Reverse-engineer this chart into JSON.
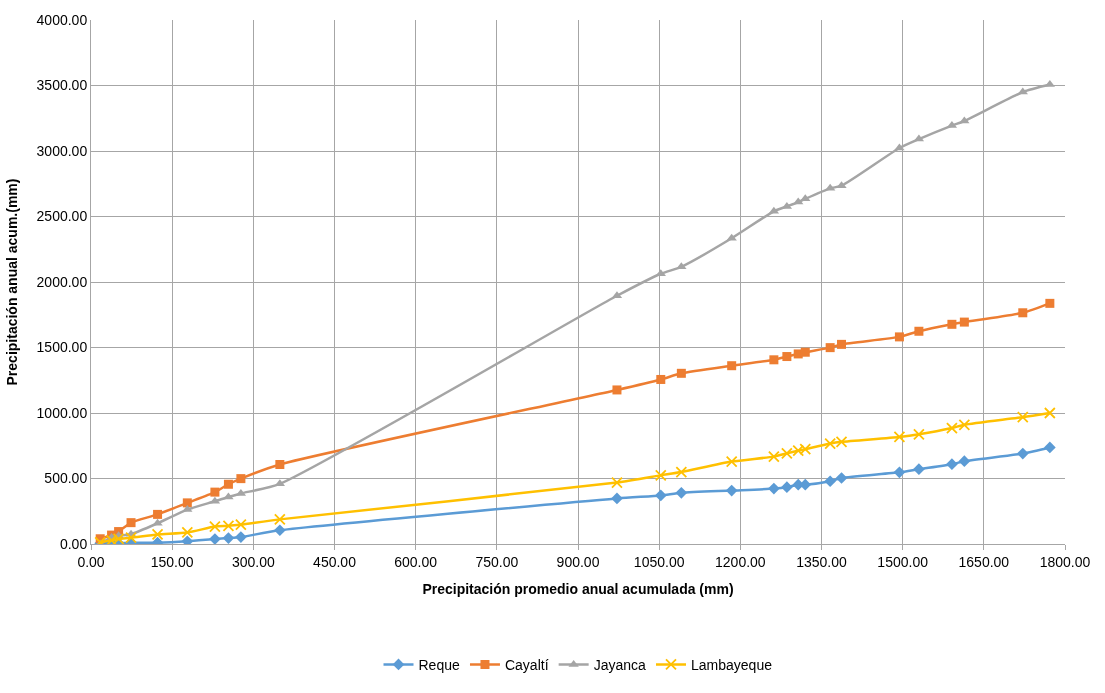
{
  "chart_data": {
    "type": "line",
    "xlabel": "Precipitación promedio anual acumulada (mm)",
    "ylabel": "Precipitación anual acum.(mm)",
    "x": [
      17,
      38,
      51,
      74,
      123,
      178,
      229,
      254,
      277,
      349,
      972,
      1053,
      1091,
      1184,
      1262,
      1286,
      1307,
      1320,
      1366,
      1387,
      1494,
      1530,
      1591,
      1614,
      1722,
      1772
    ],
    "series": [
      {
        "name": "Reque",
        "color": "#5b9bd5",
        "marker": "diamond",
        "values": [
          5,
          5,
          5,
          10,
          10,
          21,
          38,
          45,
          53,
          105,
          348,
          371,
          391,
          408,
          423,
          434,
          453,
          453,
          479,
          504,
          547,
          571,
          609,
          632,
          690,
          737
        ]
      },
      {
        "name": "Cayaltí",
        "color": "#ed7d31",
        "marker": "square",
        "values": [
          40,
          68,
          95,
          163,
          226,
          314,
          396,
          456,
          499,
          607,
          1176,
          1256,
          1303,
          1361,
          1406,
          1431,
          1451,
          1464,
          1499,
          1524,
          1581,
          1624,
          1677,
          1694,
          1765,
          1837
        ]
      },
      {
        "name": "Jayanca",
        "color": "#a5a5a5",
        "marker": "triangle",
        "values": [
          0,
          50,
          63,
          75,
          158,
          263,
          326,
          359,
          386,
          459,
          1895,
          2063,
          2116,
          2334,
          2540,
          2577,
          2610,
          2635,
          2715,
          2735,
          3023,
          3091,
          3194,
          3229,
          3450,
          3507
        ]
      },
      {
        "name": "Lambayeque",
        "color": "#ffc000",
        "marker": "cross",
        "values": [
          13,
          28,
          39,
          48,
          73,
          88,
          133,
          138,
          148,
          188,
          469,
          524,
          549,
          629,
          667,
          692,
          712,
          724,
          767,
          780,
          817,
          837,
          885,
          910,
          968,
          1000
        ]
      }
    ],
    "xlim": [
      0,
      1800
    ],
    "xticks": [
      {
        "value": 0,
        "label": "0.00"
      },
      {
        "value": 150,
        "label": "150.00"
      },
      {
        "value": 300,
        "label": "300.00"
      },
      {
        "value": 450,
        "label": "450.00"
      },
      {
        "value": 600,
        "label": "600.00"
      },
      {
        "value": 750,
        "label": "750.00"
      },
      {
        "value": 900,
        "label": "900.00"
      },
      {
        "value": 1050,
        "label": "1050.00"
      },
      {
        "value": 1200,
        "label": "1200.00"
      },
      {
        "value": 1350,
        "label": "1350.00"
      },
      {
        "value": 1500,
        "label": "1500.00"
      },
      {
        "value": 1650,
        "label": "1650.00"
      },
      {
        "value": 1800,
        "label": "1800.00"
      }
    ],
    "ylim": [
      0,
      4000
    ],
    "yticks": [
      {
        "value": 0,
        "label": "0.00"
      },
      {
        "value": 500,
        "label": "500.00"
      },
      {
        "value": 1000,
        "label": "1000.00"
      },
      {
        "value": 1500,
        "label": "1500.00"
      },
      {
        "value": 2000,
        "label": "2000.00"
      },
      {
        "value": 2500,
        "label": "2500.00"
      },
      {
        "value": 3000,
        "label": "3000.00"
      },
      {
        "value": 3500,
        "label": "3500.00"
      },
      {
        "value": 4000,
        "label": "4000.00"
      }
    ],
    "grid": true,
    "legend": "bottom",
    "line_style": "solid"
  }
}
